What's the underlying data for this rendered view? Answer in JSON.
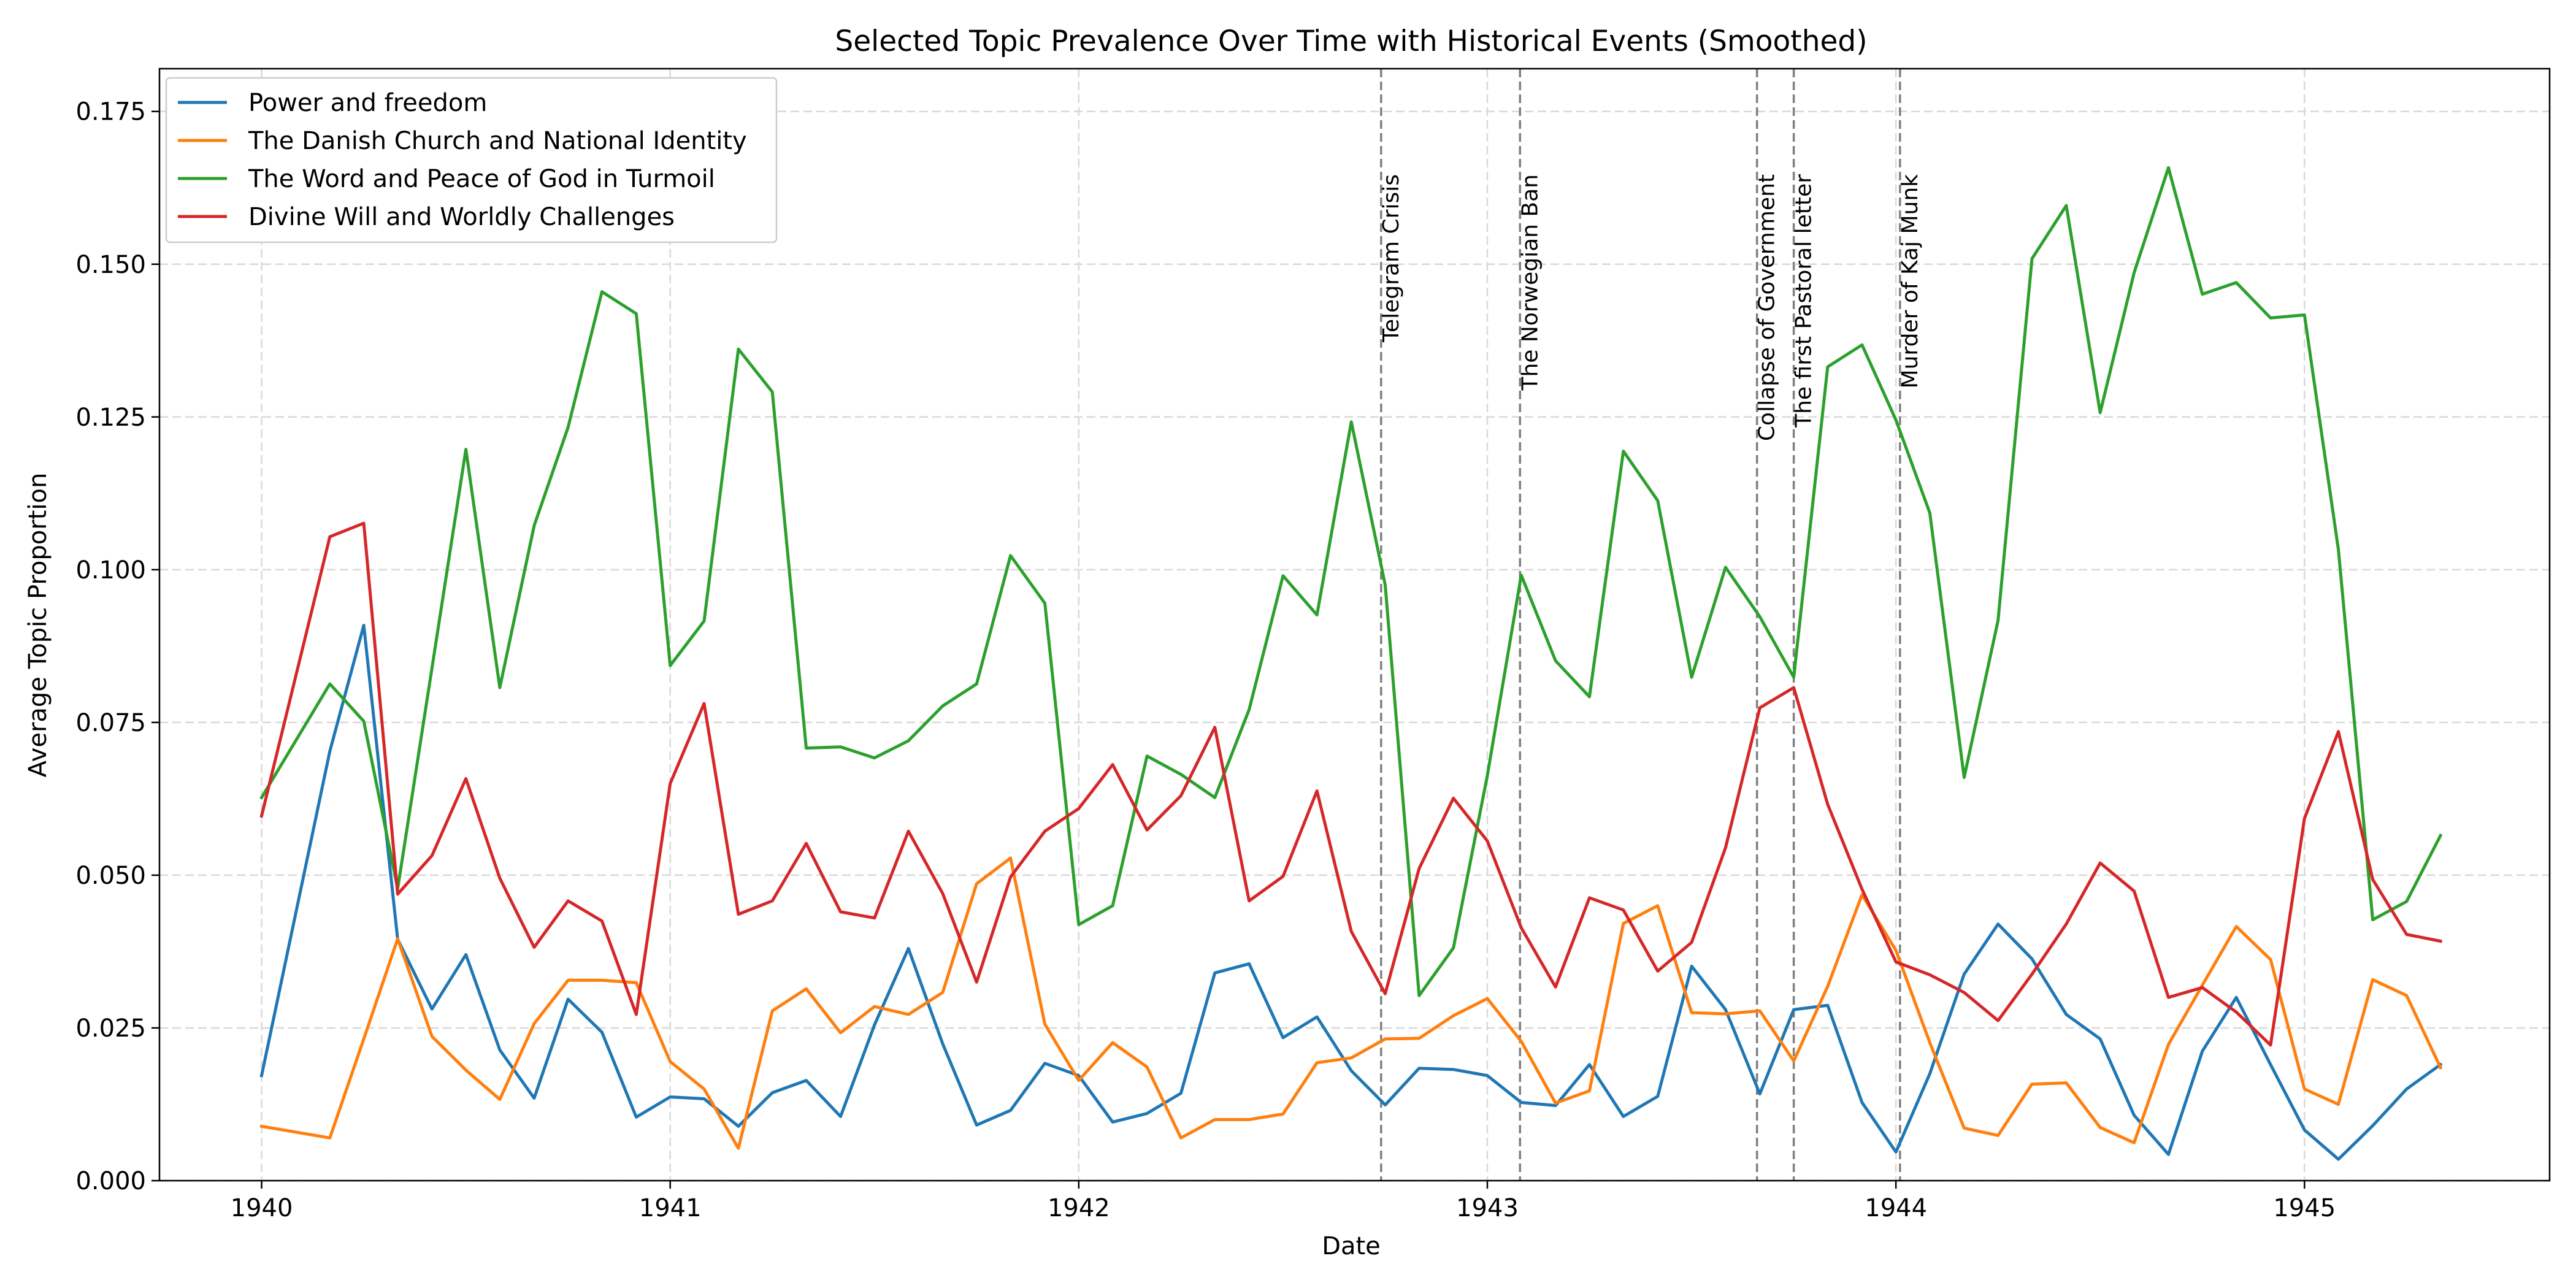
{
  "chart_data": {
    "type": "line",
    "title": "Selected Topic Prevalence Over Time with Historical Events (Smoothed)",
    "xlabel": "Date",
    "ylabel": "Average Topic Proportion",
    "xlim": [
      1939.75,
      1945.6
    ],
    "ylim": [
      0,
      0.182
    ],
    "xticks": [
      1940,
      1941,
      1942,
      1943,
      1944,
      1945
    ],
    "xtick_labels": [
      "1940",
      "1941",
      "1942",
      "1943",
      "1944",
      "1945"
    ],
    "yticks": [
      0,
      0.025,
      0.05,
      0.075,
      0.1,
      0.125,
      0.15,
      0.175
    ],
    "ytick_labels": [
      "0.000",
      "0.025",
      "0.050",
      "0.075",
      "0.100",
      "0.125",
      "0.150",
      "0.175"
    ],
    "grid": true,
    "legend_position": "top-left",
    "x": [
      1940.0,
      1940.167,
      1940.25,
      1940.333,
      1940.417,
      1940.5,
      1940.583,
      1940.667,
      1940.75,
      1940.833,
      1940.917,
      1941.0,
      1941.083,
      1941.167,
      1941.25,
      1941.333,
      1941.417,
      1941.5,
      1941.583,
      1941.667,
      1941.75,
      1941.833,
      1941.917,
      1942.0,
      1942.083,
      1942.167,
      1942.25,
      1942.333,
      1942.417,
      1942.5,
      1942.583,
      1942.667,
      1942.75,
      1942.833,
      1942.917,
      1943.0,
      1943.083,
      1943.167,
      1943.25,
      1943.333,
      1943.417,
      1943.5,
      1943.583,
      1943.667,
      1943.75,
      1943.833,
      1943.917,
      1944.0,
      1944.083,
      1944.167,
      1944.25,
      1944.333,
      1944.417,
      1944.5,
      1944.583,
      1944.667,
      1944.75,
      1944.833,
      1944.917,
      1945.0,
      1945.083,
      1945.167,
      1945.25,
      1945.333
    ],
    "series": [
      {
        "name": "Power and freedom",
        "color": "#1f77b4",
        "values": [
          0.0172,
          0.0703,
          0.0909,
          0.0395,
          0.0281,
          0.037,
          0.0214,
          0.0135,
          0.0297,
          0.0243,
          0.0104,
          0.0137,
          0.0134,
          0.0089,
          0.0144,
          0.0164,
          0.0105,
          0.0255,
          0.038,
          0.0224,
          0.0091,
          0.0115,
          0.0192,
          0.0172,
          0.0096,
          0.011,
          0.0143,
          0.034,
          0.0355,
          0.0234,
          0.0268,
          0.018,
          0.0124,
          0.0184,
          0.0182,
          0.0172,
          0.0128,
          0.0123,
          0.019,
          0.0105,
          0.0138,
          0.0351,
          0.028,
          0.0142,
          0.028,
          0.0287,
          0.0128,
          0.0047,
          0.0175,
          0.0338,
          0.042,
          0.0363,
          0.0272,
          0.0232,
          0.0107,
          0.0043,
          0.0212,
          0.03,
          0.019,
          0.0083,
          0.0035,
          0.009,
          0.015,
          0.019
        ]
      },
      {
        "name": "The Danish Church and National Identity",
        "color": "#ff7f0e",
        "values": [
          0.0089,
          0.007,
          0.0232,
          0.0396,
          0.0236,
          0.0181,
          0.0133,
          0.0257,
          0.0328,
          0.0328,
          0.0324,
          0.0195,
          0.015,
          0.0053,
          0.0278,
          0.0314,
          0.0242,
          0.0285,
          0.0272,
          0.0308,
          0.0486,
          0.0528,
          0.0256,
          0.0164,
          0.0226,
          0.0186,
          0.007,
          0.01,
          0.01,
          0.0109,
          0.0193,
          0.0201,
          0.0232,
          0.0233,
          0.027,
          0.0298,
          0.0228,
          0.0127,
          0.0147,
          0.0421,
          0.045,
          0.0275,
          0.0273,
          0.0278,
          0.0196,
          0.0318,
          0.0468,
          0.0377,
          0.0226,
          0.0086,
          0.0074,
          0.0158,
          0.016,
          0.0087,
          0.0062,
          0.0223,
          0.032,
          0.0416,
          0.0362,
          0.015,
          0.0125,
          0.0329,
          0.0303,
          0.0185
        ]
      },
      {
        "name": "The Word and Peace of God in Turmoil",
        "color": "#2ca02c",
        "values": [
          0.0627,
          0.0813,
          0.0752,
          0.0478,
          0.0839,
          0.1197,
          0.0807,
          0.1072,
          0.1233,
          0.1455,
          0.1419,
          0.0843,
          0.0916,
          0.1361,
          0.1291,
          0.0708,
          0.071,
          0.0692,
          0.072,
          0.0777,
          0.0813,
          0.1023,
          0.0945,
          0.0419,
          0.045,
          0.0695,
          0.0665,
          0.0627,
          0.0771,
          0.099,
          0.0926,
          0.1242,
          0.0975,
          0.0303,
          0.0381,
          0.0663,
          0.0991,
          0.0851,
          0.0792,
          0.1194,
          0.1113,
          0.0824,
          0.1004,
          0.0923,
          0.0824,
          0.1332,
          0.1368,
          0.1245,
          0.1093,
          0.066,
          0.0917,
          0.1509,
          0.1596,
          0.1257,
          0.1486,
          0.1658,
          0.1451,
          0.147,
          0.1412,
          0.1417,
          0.1033,
          0.0427,
          0.0457,
          0.0565
        ]
      },
      {
        "name": "Divine Will and Worldly Challenges",
        "color": "#d62728",
        "values": [
          0.0597,
          0.1054,
          0.1076,
          0.0469,
          0.0532,
          0.0658,
          0.0495,
          0.0382,
          0.0458,
          0.0425,
          0.0272,
          0.065,
          0.0781,
          0.0436,
          0.0458,
          0.0552,
          0.044,
          0.043,
          0.0572,
          0.047,
          0.0325,
          0.0497,
          0.0572,
          0.0609,
          0.0681,
          0.0574,
          0.063,
          0.0742,
          0.0458,
          0.0498,
          0.0638,
          0.0408,
          0.0306,
          0.0511,
          0.0626,
          0.0556,
          0.0414,
          0.0317,
          0.0463,
          0.0443,
          0.0343,
          0.039,
          0.0545,
          0.0774,
          0.0807,
          0.0616,
          0.0477,
          0.0358,
          0.0337,
          0.0308,
          0.0262,
          0.0338,
          0.042,
          0.052,
          0.0474,
          0.03,
          0.0316,
          0.0276,
          0.0222,
          0.0593,
          0.0735,
          0.0493,
          0.0403,
          0.0392
        ]
      }
    ],
    "events": [
      {
        "label": "Telegram Crisis",
        "x": 1942.74
      },
      {
        "label": "The Norwegian Ban",
        "x": 1943.08
      },
      {
        "label": "Collapse of Government",
        "x": 1943.66
      },
      {
        "label": "The first Pastoral letter",
        "x": 1943.75
      },
      {
        "label": "Murder of Kaj Munk",
        "x": 1944.01
      }
    ],
    "event_line_color": "#808080",
    "grid_color": "#d9d9d9"
  }
}
